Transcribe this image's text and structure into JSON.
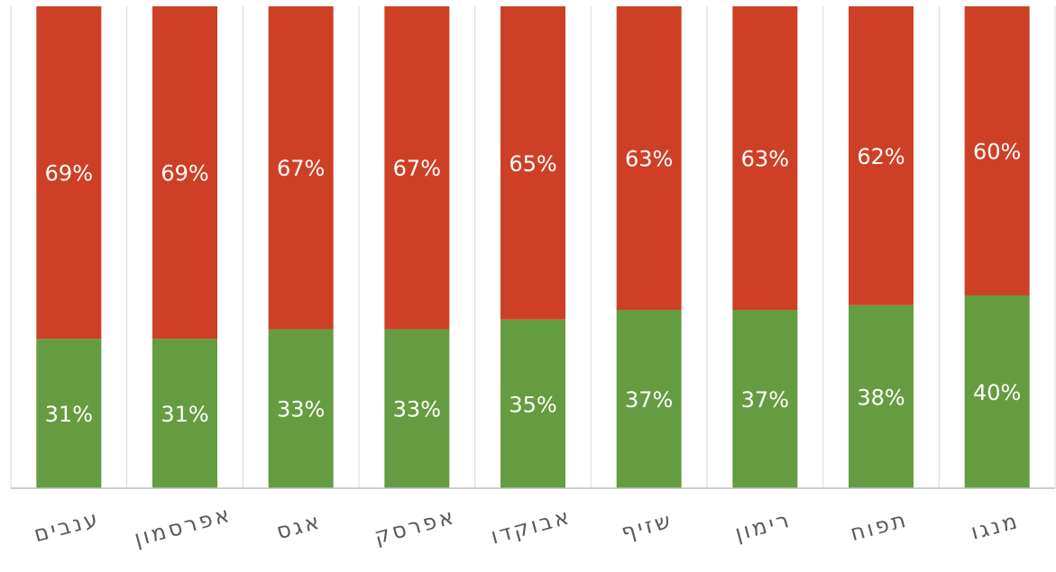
{
  "chart_data": {
    "type": "bar",
    "stacked": true,
    "orientation": "vertical",
    "categories": [
      "ענבים",
      "אפרסמון",
      "אגס",
      "אפרסק",
      "אבוקדו",
      "שזיף",
      "רימון",
      "תפוח",
      "מנגו"
    ],
    "series": [
      {
        "values": [
          31,
          31,
          33,
          33,
          35,
          37,
          37,
          38,
          40
        ],
        "labels": [
          "31%",
          "31%",
          "33%",
          "33%",
          "35%",
          "37%",
          "37%",
          "38%",
          "40%"
        ],
        "color": "#659C41"
      },
      {
        "values": [
          69,
          69,
          67,
          67,
          65,
          63,
          63,
          62,
          60
        ],
        "labels": [
          "69%",
          "69%",
          "67%",
          "67%",
          "65%",
          "63%",
          "63%",
          "62%",
          "60%"
        ],
        "color": "#CE4026"
      }
    ],
    "ylim": [
      0,
      100
    ],
    "unit": "%",
    "grid": "vertical-category-separators",
    "legend": "none",
    "gridline_color": "#D9D9D9",
    "axis_color": "#BFBFBF",
    "tick_label_color": "#595959"
  }
}
